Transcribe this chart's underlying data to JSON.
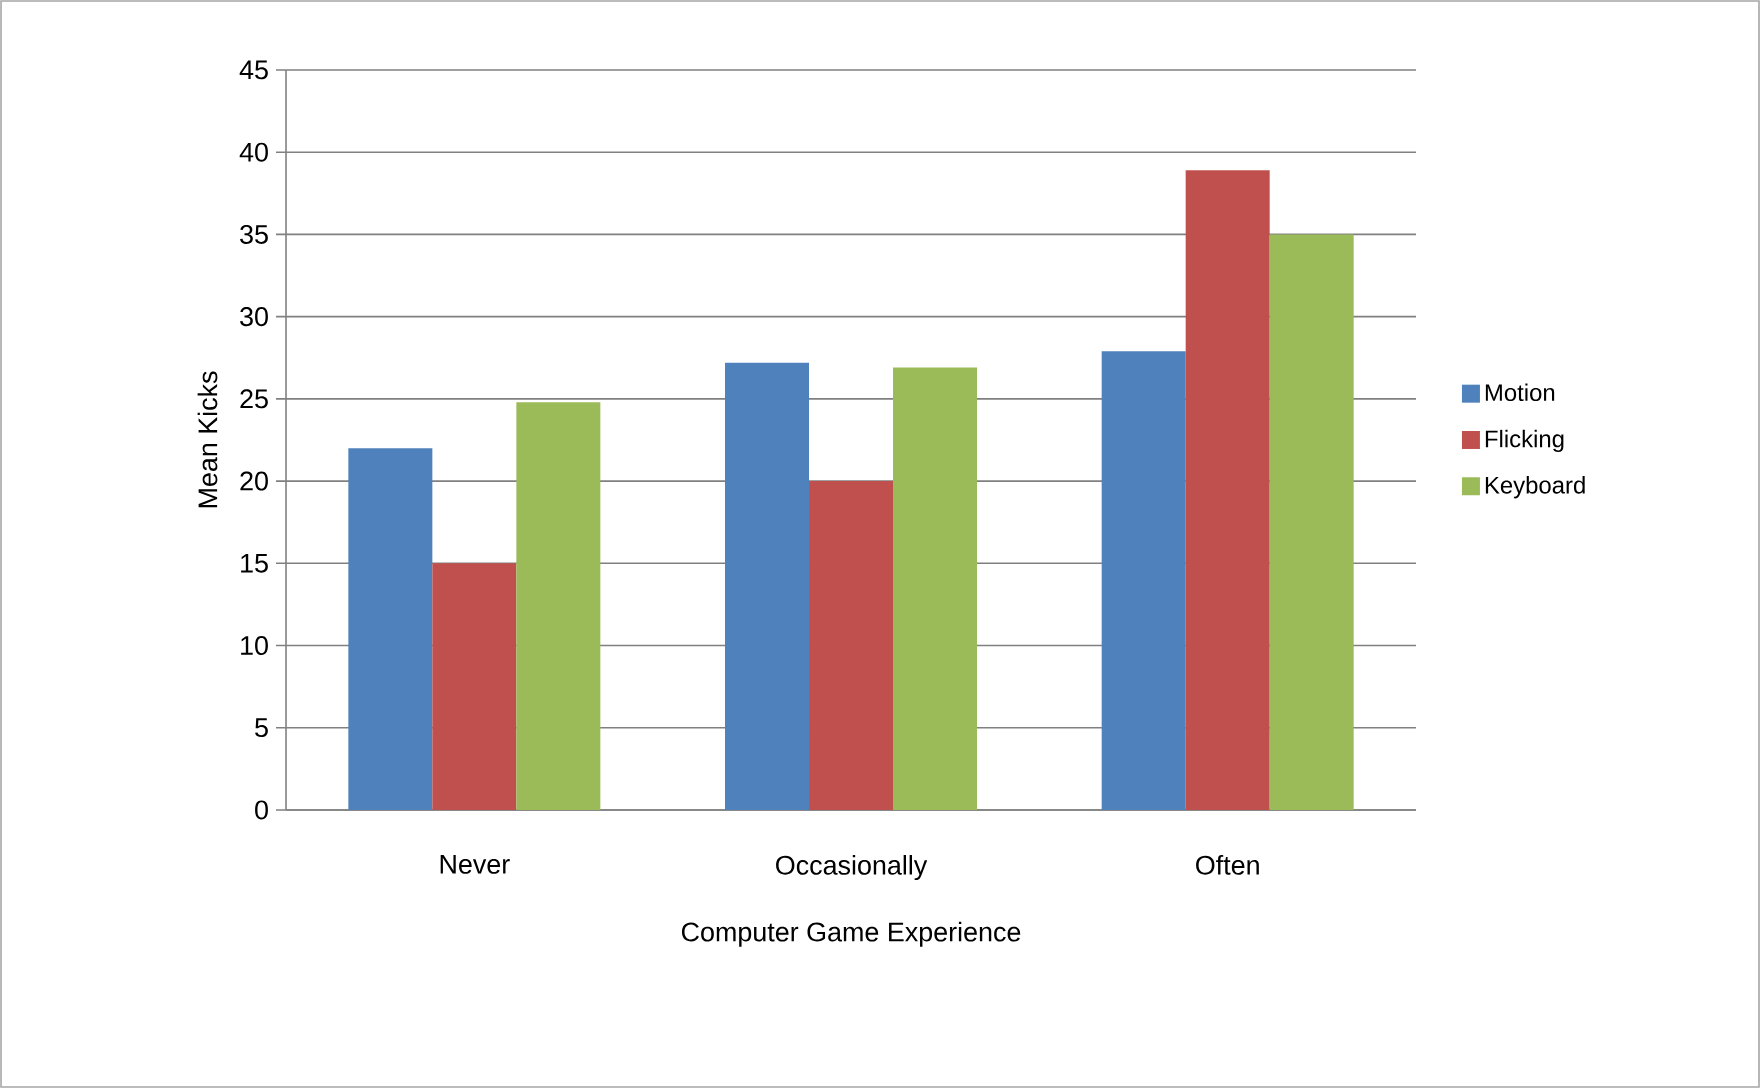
{
  "chart_data": {
    "type": "bar",
    "xlabel": "Computer Game Experience",
    "ylabel": "Mean Kicks",
    "categories": [
      "Never",
      "Occasionally",
      "Often"
    ],
    "series": [
      {
        "name": "Motion",
        "color": "#4f81bd",
        "values": [
          22,
          27.2,
          27.9
        ]
      },
      {
        "name": "Flicking",
        "color": "#c0504d",
        "values": [
          15,
          20,
          38.9
        ]
      },
      {
        "name": "Keyboard",
        "color": "#9bbb59",
        "values": [
          24.8,
          26.9,
          35
        ]
      }
    ],
    "ylim": [
      0,
      45
    ],
    "yticks": [
      0,
      5,
      10,
      15,
      20,
      25,
      30,
      35,
      40,
      45
    ],
    "grid": "y",
    "legend": "right"
  }
}
